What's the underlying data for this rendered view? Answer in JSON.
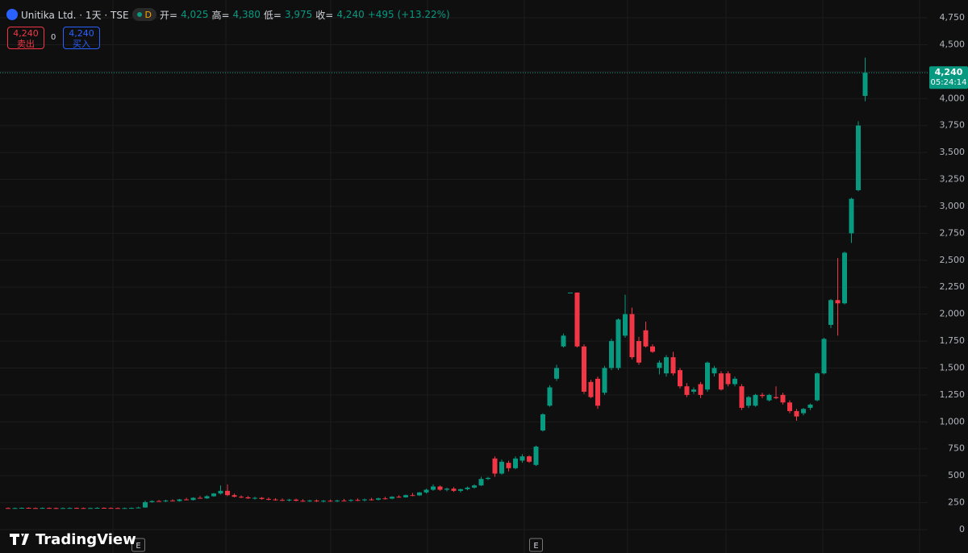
{
  "header": {
    "symbol": "Unitika Ltd. · 1天 · TSE",
    "interval": "D",
    "open_label": "开=",
    "open": "4,025",
    "high_label": "高=",
    "high": "4,380",
    "low_label": "低=",
    "low": "3,975",
    "close_label": "收=",
    "close": "4,240",
    "change": "+495 (+13.22%)"
  },
  "trade": {
    "sell_price": "4,240",
    "sell_label": "卖出",
    "spread": "0",
    "buy_price": "4,240",
    "buy_label": "买入"
  },
  "watermark": "TradingView",
  "chart_data": {
    "type": "candlestick",
    "open": [
      200,
      199,
      200,
      202,
      200,
      199,
      201,
      200,
      198,
      200,
      201,
      200,
      199,
      200,
      202,
      201,
      200,
      199,
      200,
      201,
      205,
      255,
      265,
      262,
      270,
      265,
      280,
      275,
      295,
      290,
      310,
      335,
      360,
      320,
      305,
      300,
      290,
      295,
      285,
      280,
      275,
      270,
      278,
      268,
      265,
      270,
      262,
      268,
      265,
      270,
      268,
      275,
      272,
      280,
      278,
      290,
      288,
      305,
      300,
      320,
      318,
      345,
      370,
      400,
      370,
      380,
      360,
      375,
      390,
      410,
      470,
      660,
      520,
      620,
      570,
      640,
      680,
      600,
      920,
      1150,
      1400,
      1700,
      2200,
      2200,
      1700,
      1370,
      1400,
      1270,
      1500,
      1500,
      1800,
      2000,
      1750,
      1850,
      1700,
      1500,
      1450,
      1600,
      1480,
      1330,
      1280,
      1350,
      1300,
      1450,
      1450,
      1450,
      1350,
      1330,
      1150,
      1150,
      1250,
      1200,
      1230,
      1250,
      1180,
      1100,
      1080,
      1130,
      1200,
      1450,
      1900,
      2130,
      2100,
      2750,
      3150,
      4025
    ],
    "high": [
      206,
      205,
      207,
      207,
      205,
      206,
      206,
      205,
      205,
      206,
      206,
      205,
      205,
      208,
      207,
      206,
      205,
      205,
      206,
      212,
      268,
      272,
      275,
      278,
      282,
      285,
      295,
      300,
      312,
      318,
      340,
      410,
      420,
      335,
      318,
      312,
      305,
      302,
      298,
      292,
      290,
      285,
      288,
      282,
      278,
      280,
      275,
      280,
      278,
      285,
      282,
      290,
      288,
      295,
      296,
      305,
      310,
      320,
      325,
      340,
      350,
      380,
      420,
      410,
      390,
      395,
      380,
      400,
      420,
      490,
      490,
      680,
      650,
      640,
      680,
      700,
      690,
      780,
      1080,
      1340,
      1530,
      1820,
      2200,
      2200,
      1720,
      1390,
      1420,
      1520,
      1770,
      1960,
      2180,
      2060,
      1790,
      1930,
      1720,
      1570,
      1620,
      1650,
      1500,
      1360,
      1320,
      1370,
      1560,
      1520,
      1470,
      1470,
      1420,
      1350,
      1240,
      1260,
      1270,
      1260,
      1330,
      1270,
      1200,
      1120,
      1130,
      1170,
      1460,
      1780,
      2140,
      2520,
      2580,
      3080,
      3790,
      4380
    ],
    "low": [
      195,
      194,
      196,
      196,
      194,
      195,
      195,
      193,
      194,
      195,
      195,
      194,
      194,
      196,
      196,
      195,
      194,
      194,
      195,
      198,
      203,
      250,
      258,
      255,
      262,
      260,
      272,
      270,
      288,
      285,
      305,
      325,
      310,
      300,
      292,
      285,
      280,
      278,
      272,
      268,
      265,
      262,
      262,
      258,
      255,
      256,
      252,
      258,
      255,
      262,
      258,
      265,
      262,
      270,
      270,
      280,
      282,
      295,
      295,
      310,
      312,
      335,
      360,
      360,
      355,
      350,
      345,
      365,
      380,
      405,
      460,
      490,
      510,
      540,
      560,
      620,
      620,
      590,
      910,
      1140,
      1380,
      1690,
      2200,
      1690,
      1260,
      1220,
      1120,
      1250,
      1480,
      1480,
      1780,
      1580,
      1530,
      1690,
      1640,
      1440,
      1420,
      1430,
      1310,
      1230,
      1260,
      1220,
      1280,
      1420,
      1290,
      1330,
      1330,
      1110,
      1130,
      1140,
      1220,
      1190,
      1210,
      1160,
      1080,
      1010,
      1060,
      1110,
      1190,
      1440,
      1870,
      1800,
      2090,
      2660,
      3140,
      3975
    ],
    "close": [
      199,
      200,
      202,
      200,
      199,
      201,
      200,
      198,
      200,
      201,
      200,
      199,
      200,
      202,
      201,
      200,
      199,
      200,
      201,
      205,
      255,
      265,
      262,
      270,
      265,
      280,
      275,
      295,
      290,
      310,
      335,
      360,
      320,
      305,
      300,
      290,
      295,
      285,
      280,
      275,
      270,
      278,
      268,
      265,
      270,
      262,
      268,
      265,
      270,
      268,
      275,
      272,
      280,
      278,
      290,
      288,
      305,
      300,
      320,
      318,
      345,
      370,
      400,
      370,
      380,
      360,
      375,
      390,
      410,
      470,
      480,
      520,
      630,
      570,
      660,
      680,
      630,
      770,
      1070,
      1320,
      1500,
      1800,
      2200,
      1700,
      1280,
      1230,
      1150,
      1500,
      1750,
      1950,
      2000,
      1600,
      1550,
      1700,
      1650,
      1550,
      1600,
      1450,
      1330,
      1250,
      1300,
      1250,
      1550,
      1500,
      1300,
      1350,
      1400,
      1130,
      1230,
      1250,
      1240,
      1250,
      1220,
      1180,
      1100,
      1050,
      1120,
      1160,
      1450,
      1770,
      2130,
      2100,
      2570,
      3070,
      3750,
      4240
    ],
    "up_color": "#089981",
    "down_color": "#f23645",
    "ylim": [
      -217,
      4915
    ],
    "yticks": [
      0,
      250,
      500,
      750,
      {
        "value": 1000,
        "label": "1,000"
      },
      {
        "value": 1250,
        "label": "1,250"
      },
      {
        "value": 1500,
        "label": "1,500"
      },
      {
        "value": 1750,
        "label": "1,750"
      },
      {
        "value": 2000,
        "label": "2,000"
      },
      {
        "value": 2250,
        "label": "2,250"
      },
      {
        "value": 2500,
        "label": "2,500"
      },
      {
        "value": 2750,
        "label": "2,750"
      },
      {
        "value": 3000,
        "label": "3,000"
      },
      {
        "value": 3250,
        "label": "3,250"
      },
      {
        "value": 3500,
        "label": "3,500"
      },
      {
        "value": 3750,
        "label": "3,750"
      },
      {
        "value": 4000,
        "label": "4,000"
      },
      {
        "value": 4250,
        "label": "4,250"
      },
      {
        "value": 4500,
        "label": "4,500"
      },
      {
        "value": 4750,
        "label": "4,750"
      }
    ],
    "grid": true,
    "last_price": {
      "value": 4240,
      "label": "4,240"
    },
    "countdown": "05:24:14",
    "events": [
      {
        "candle": 19,
        "label": "E"
      },
      {
        "candle": 77,
        "label": "E"
      }
    ]
  }
}
